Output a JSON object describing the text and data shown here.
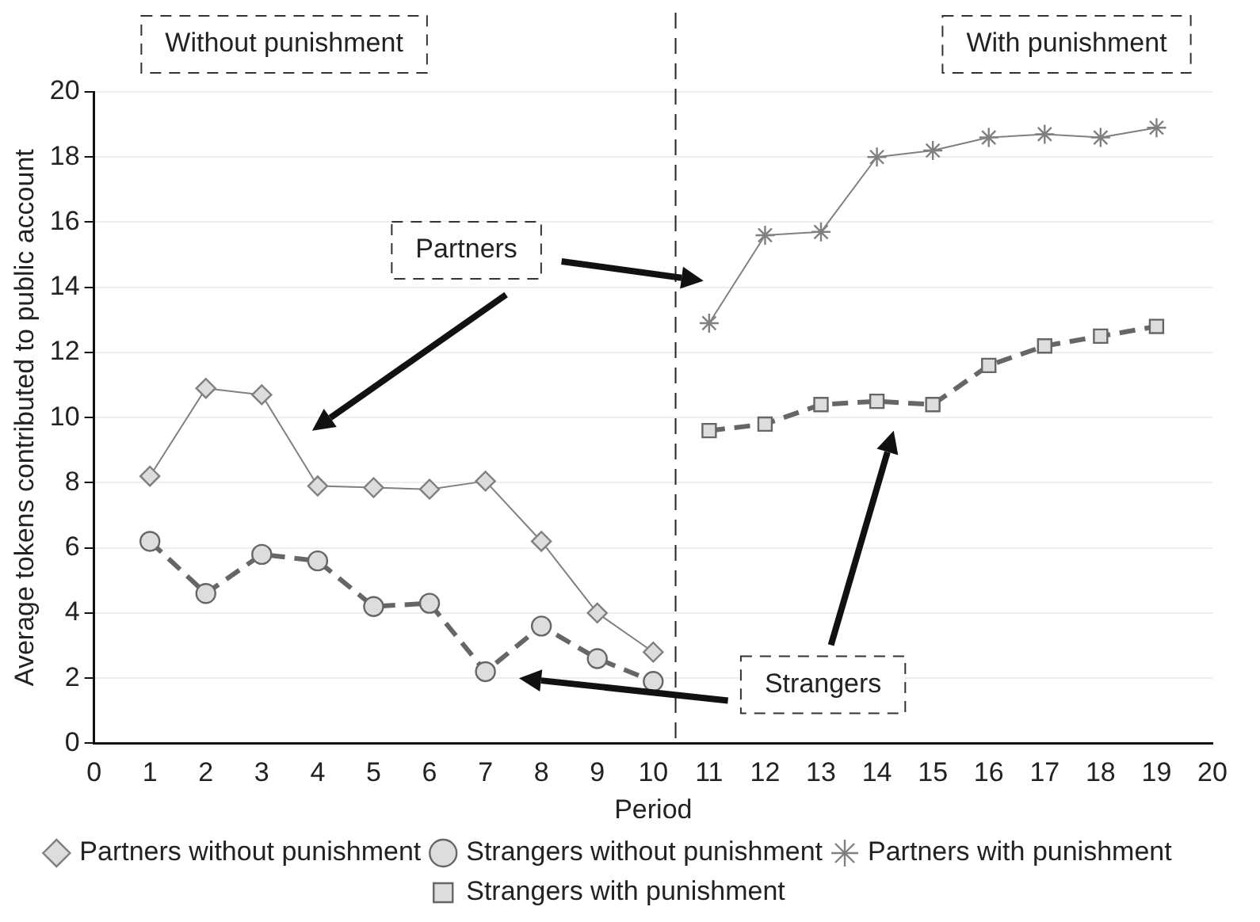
{
  "chart_data": {
    "type": "line",
    "xlabel": "Period",
    "ylabel": "Average tokens contributed to public account",
    "xlim": [
      0,
      20
    ],
    "xticks": [
      0,
      1,
      2,
      3,
      4,
      5,
      6,
      7,
      8,
      9,
      10,
      11,
      12,
      13,
      14,
      15,
      16,
      17,
      18,
      19,
      20
    ],
    "ylim": [
      0,
      20
    ],
    "yticks": [
      0,
      2,
      4,
      6,
      8,
      10,
      12,
      14,
      16,
      18,
      20
    ],
    "grid": "y",
    "legend": "bottom",
    "series": [
      {
        "name": "Partners without punishment",
        "color": "#808080",
        "marker": "diamond",
        "line_style": "solid",
        "x": [
          1,
          2,
          3,
          4,
          5,
          6,
          7,
          8,
          9,
          10
        ],
        "values": [
          8.2,
          10.9,
          10.7,
          7.9,
          7.85,
          7.8,
          8.05,
          6.2,
          4.0,
          2.8
        ]
      },
      {
        "name": "Strangers without punishment",
        "color": "#666666",
        "marker": "circle",
        "line_style": "dashed",
        "x": [
          1,
          2,
          3,
          4,
          5,
          6,
          7,
          8,
          9,
          10
        ],
        "values": [
          6.2,
          4.6,
          5.8,
          5.6,
          4.2,
          4.3,
          2.2,
          3.6,
          2.6,
          1.9
        ]
      },
      {
        "name": "Partners with punishment",
        "color": "#808080",
        "marker": "cross",
        "line_style": "solid",
        "x": [
          11,
          12,
          13,
          14,
          15,
          16,
          17,
          18,
          19
        ],
        "values": [
          12.9,
          15.6,
          15.7,
          18.0,
          18.2,
          18.6,
          18.7,
          18.6,
          18.9
        ]
      },
      {
        "name": "Strangers with punishment",
        "color": "#666666",
        "marker": "square",
        "line_style": "dashed",
        "x": [
          11,
          12,
          13,
          14,
          15,
          16,
          17,
          18,
          19
        ],
        "values": [
          9.6,
          9.8,
          10.4,
          10.5,
          10.4,
          11.6,
          12.2,
          12.5,
          12.8
        ]
      }
    ],
    "ref_lines": [
      {
        "axis": "x",
        "value": 10.4,
        "line_style": "dashed",
        "color": "#222222"
      }
    ],
    "annotations": [
      "Without punishment",
      "With punishment",
      "Partners",
      "Strangers"
    ]
  }
}
